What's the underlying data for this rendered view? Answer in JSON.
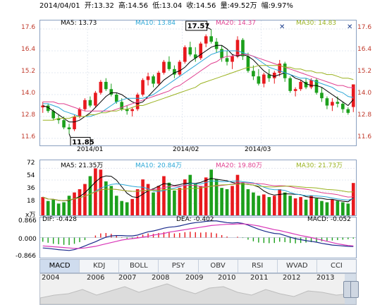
{
  "header": {
    "date": "2014/04/01",
    "open": "开:13.32",
    "high": "高:14.56",
    "low": "低:13.04",
    "close": "收:14.56",
    "volume": "量:49.52万",
    "change": "幅:9.97%"
  },
  "price_panel": {
    "ma_labels": [
      {
        "text": "MA5: 13.73",
        "color": "#000000"
      },
      {
        "text": "MA10: 13.84",
        "color": "#2aa6d6"
      },
      {
        "text": "MA20: 14.37",
        "color": "#e04090"
      },
      {
        "text": "MA30: 14.83",
        "color": "#9ab220"
      }
    ],
    "y_ticks": [
      "17.6",
      "16.4",
      "15.2",
      "14.0",
      "12.8",
      "11.6"
    ],
    "y_values": [
      17.6,
      16.4,
      15.2,
      14.0,
      12.8,
      11.6
    ],
    "date_ticks": [
      "2014/01",
      "2014/02",
      "2014/03"
    ],
    "high_marker": "17.57",
    "low_marker": "11.85",
    "up_color": "#e8191e",
    "down_color": "#1ca01c"
  },
  "volume_panel": {
    "ma_labels": [
      {
        "text": "MA5: 21.35万",
        "color": "#000000"
      },
      {
        "text": "MA10: 20.84万",
        "color": "#2aa6d6"
      },
      {
        "text": "MA20: 19.80万",
        "color": "#e04090"
      },
      {
        "text": "MA30: 21.73万",
        "color": "#9ab220"
      }
    ],
    "y_ticks": [
      "72",
      "54",
      "36",
      "18",
      "x万"
    ]
  },
  "macd_panel": {
    "dif": "DIF: -0.428",
    "dea": "DEA: -0.402",
    "macd": "MACD: -0.052",
    "y_ticks": [
      "0.866",
      "0.000",
      "-0.866"
    ]
  },
  "tabs": [
    "MACD",
    "KDJ",
    "BOLL",
    "PSY",
    "OBV",
    "RSI",
    "WVAD",
    "CCI"
  ],
  "active_tab": "MACD",
  "timeline": [
    "2004",
    "2006",
    "2007",
    "2008",
    "2009",
    "2010",
    "2011",
    "2012",
    "2013"
  ],
  "chart_data": {
    "type": "candlestick",
    "ohlc": [
      [
        13.3,
        13.6,
        13.0,
        13.4
      ],
      [
        13.4,
        13.5,
        13.0,
        13.1
      ],
      [
        13.1,
        13.2,
        12.6,
        12.7
      ],
      [
        12.7,
        12.9,
        12.4,
        12.6
      ],
      [
        12.6,
        12.8,
        12.1,
        12.2
      ],
      [
        12.2,
        12.4,
        11.85,
        12.1
      ],
      [
        12.1,
        12.9,
        12.0,
        12.8
      ],
      [
        12.8,
        13.3,
        12.7,
        13.2
      ],
      [
        13.2,
        13.8,
        13.1,
        13.7
      ],
      [
        13.7,
        13.9,
        13.3,
        13.4
      ],
      [
        13.4,
        14.2,
        13.3,
        14.1
      ],
      [
        14.1,
        14.8,
        14.0,
        14.7
      ],
      [
        14.7,
        14.9,
        14.2,
        14.3
      ],
      [
        14.3,
        14.6,
        13.9,
        14.0
      ],
      [
        14.0,
        14.1,
        13.5,
        13.6
      ],
      [
        13.6,
        13.8,
        13.1,
        13.2
      ],
      [
        13.2,
        13.4,
        12.9,
        13.1
      ],
      [
        13.1,
        13.3,
        12.8,
        13.2
      ],
      [
        13.2,
        14.1,
        13.1,
        14.0
      ],
      [
        14.0,
        14.9,
        13.9,
        14.8
      ],
      [
        14.8,
        15.2,
        14.5,
        15.0
      ],
      [
        15.0,
        15.1,
        14.4,
        14.6
      ],
      [
        14.6,
        15.3,
        14.5,
        15.2
      ],
      [
        15.2,
        15.9,
        15.1,
        15.8
      ],
      [
        15.8,
        16.1,
        15.3,
        15.4
      ],
      [
        15.4,
        15.6,
        14.9,
        15.1
      ],
      [
        15.1,
        15.9,
        15.0,
        15.8
      ],
      [
        15.8,
        16.7,
        15.7,
        16.6
      ],
      [
        16.6,
        16.9,
        16.1,
        16.2
      ],
      [
        16.2,
        16.6,
        15.8,
        16.0
      ],
      [
        16.0,
        16.9,
        15.9,
        16.8
      ],
      [
        16.8,
        17.3,
        16.6,
        17.2
      ],
      [
        17.2,
        17.57,
        16.8,
        16.9
      ],
      [
        16.9,
        17.1,
        16.3,
        16.5
      ],
      [
        16.5,
        16.7,
        15.8,
        16.0
      ],
      [
        16.0,
        16.4,
        15.6,
        15.8
      ],
      [
        15.8,
        16.2,
        15.4,
        16.1
      ],
      [
        16.1,
        17.2,
        16.0,
        17.0
      ],
      [
        17.0,
        17.1,
        15.9,
        16.1
      ],
      [
        16.1,
        16.3,
        15.2,
        15.3
      ],
      [
        15.3,
        15.6,
        14.8,
        15.0
      ],
      [
        15.0,
        15.4,
        14.5,
        14.6
      ],
      [
        14.6,
        15.2,
        14.4,
        15.1
      ],
      [
        15.1,
        15.4,
        14.7,
        14.9
      ],
      [
        14.9,
        15.3,
        14.6,
        15.2
      ],
      [
        15.2,
        15.9,
        15.0,
        15.7
      ],
      [
        15.7,
        15.8,
        14.7,
        14.9
      ],
      [
        14.9,
        15.0,
        14.1,
        14.2
      ],
      [
        14.2,
        14.4,
        13.9,
        14.3
      ],
      [
        14.3,
        14.8,
        14.2,
        14.7
      ],
      [
        14.7,
        14.9,
        14.3,
        14.4
      ],
      [
        14.4,
        14.9,
        14.3,
        14.8
      ],
      [
        14.8,
        14.9,
        14.0,
        14.1
      ],
      [
        14.1,
        14.4,
        13.6,
        13.8
      ],
      [
        13.8,
        13.9,
        13.2,
        13.4
      ],
      [
        13.4,
        13.8,
        13.1,
        13.6
      ],
      [
        13.6,
        13.9,
        13.3,
        13.5
      ],
      [
        13.5,
        13.6,
        13.0,
        13.2
      ],
      [
        13.2,
        13.3,
        12.9,
        13.0
      ],
      [
        13.32,
        14.56,
        13.04,
        14.56
      ]
    ],
    "ma5": [
      13.4,
      13.3,
      13.1,
      12.9,
      12.7,
      12.5,
      12.5,
      12.6,
      12.8,
      13.0,
      13.3,
      13.6,
      13.9,
      14.1,
      14.1,
      14.0,
      13.8,
      13.6,
      13.5,
      13.6,
      13.9,
      14.2,
      14.5,
      14.8,
      15.0,
      15.2,
      15.3,
      15.5,
      15.8,
      16.0,
      16.2,
      16.4,
      16.6,
      16.7,
      16.7,
      16.5,
      16.2,
      16.1,
      16.2,
      16.1,
      15.9,
      15.6,
      15.3,
      15.1,
      15.0,
      15.1,
      15.2,
      15.1,
      14.9,
      14.8,
      14.6,
      14.5,
      14.5,
      14.4,
      14.2,
      14.0,
      13.8,
      13.6,
      13.4,
      13.73
    ],
    "ma10": [
      13.5,
      13.5,
      13.4,
      13.3,
      13.1,
      13.0,
      12.9,
      12.8,
      12.8,
      12.8,
      12.9,
      13.0,
      13.2,
      13.4,
      13.6,
      13.7,
      13.8,
      13.8,
      13.8,
      13.8,
      13.9,
      14.0,
      14.2,
      14.4,
      14.6,
      14.8,
      15.0,
      15.2,
      15.4,
      15.6,
      15.8,
      16.0,
      16.2,
      16.3,
      16.4,
      16.4,
      16.4,
      16.4,
      16.3,
      16.2,
      16.1,
      15.9,
      15.7,
      15.5,
      15.4,
      15.3,
      15.2,
      15.1,
      15.0,
      14.9,
      14.9,
      14.8,
      14.7,
      14.6,
      14.5,
      14.4,
      14.2,
      14.1,
      13.9,
      13.84
    ],
    "ma20": [
      13.6,
      13.6,
      13.6,
      13.5,
      13.5,
      13.4,
      13.3,
      13.2,
      13.1,
      13.1,
      13.1,
      13.1,
      13.1,
      13.1,
      13.2,
      13.3,
      13.4,
      13.5,
      13.6,
      13.7,
      13.8,
      13.9,
      14.0,
      14.1,
      14.2,
      14.4,
      14.5,
      14.7,
      14.9,
      15.1,
      15.3,
      15.5,
      15.7,
      15.8,
      16.0,
      16.1,
      16.1,
      16.2,
      16.2,
      16.2,
      16.1,
      16.0,
      15.9,
      15.8,
      15.7,
      15.6,
      15.5,
      15.4,
      15.3,
      15.2,
      15.1,
      15.0,
      14.9,
      14.8,
      14.7,
      14.6,
      14.5,
      14.5,
      14.4,
      14.37
    ],
    "ma30": [
      12.6,
      12.6,
      12.6,
      12.7,
      12.7,
      12.7,
      12.8,
      12.8,
      12.8,
      12.9,
      12.9,
      13.0,
      13.0,
      13.1,
      13.1,
      13.2,
      13.2,
      13.3,
      13.4,
      13.4,
      13.5,
      13.6,
      13.7,
      13.8,
      13.9,
      14.0,
      14.1,
      14.2,
      14.3,
      14.4,
      14.6,
      14.7,
      14.8,
      14.9,
      15.0,
      15.1,
      15.2,
      15.3,
      15.4,
      15.5,
      15.5,
      15.6,
      15.6,
      15.6,
      15.6,
      15.6,
      15.5,
      15.5,
      15.4,
      15.4,
      15.3,
      15.3,
      15.2,
      15.2,
      15.1,
      15.1,
      15.0,
      14.9,
      14.9,
      14.83
    ],
    "volume": [
      28,
      22,
      24,
      18,
      20,
      30,
      35,
      40,
      48,
      60,
      72,
      70,
      52,
      45,
      30,
      22,
      20,
      25,
      40,
      55,
      48,
      35,
      45,
      60,
      50,
      38,
      42,
      55,
      62,
      48,
      45,
      58,
      70,
      55,
      42,
      40,
      45,
      62,
      50,
      40,
      35,
      30,
      32,
      28,
      30,
      40,
      35,
      30,
      26,
      28,
      24,
      30,
      26,
      22,
      20,
      24,
      22,
      20,
      18,
      49.52
    ],
    "macd_bar": [
      -0.2,
      -0.25,
      -0.3,
      -0.32,
      -0.35,
      -0.36,
      -0.3,
      -0.22,
      -0.12,
      0.0,
      0.1,
      0.2,
      0.22,
      0.18,
      0.1,
      0.02,
      -0.05,
      -0.04,
      0.05,
      0.14,
      0.2,
      0.18,
      0.22,
      0.26,
      0.24,
      0.2,
      0.22,
      0.26,
      0.28,
      0.26,
      0.24,
      0.26,
      0.24,
      0.2,
      0.12,
      0.05,
      0.0,
      0.04,
      -0.02,
      -0.1,
      -0.18,
      -0.24,
      -0.26,
      -0.27,
      -0.26,
      -0.2,
      -0.22,
      -0.26,
      -0.28,
      -0.26,
      -0.24,
      -0.22,
      -0.2,
      -0.18,
      -0.16,
      -0.14,
      -0.12,
      -0.1,
      -0.08,
      -0.052
    ],
    "dif": [
      -0.5,
      -0.52,
      -0.55,
      -0.58,
      -0.6,
      -0.62,
      -0.58,
      -0.5,
      -0.4,
      -0.3,
      -0.2,
      -0.08,
      0.02,
      0.08,
      0.1,
      0.1,
      0.08,
      0.08,
      0.12,
      0.2,
      0.28,
      0.32,
      0.38,
      0.45,
      0.5,
      0.52,
      0.56,
      0.62,
      0.68,
      0.72,
      0.74,
      0.78,
      0.8,
      0.8,
      0.76,
      0.72,
      0.7,
      0.72,
      0.68,
      0.6,
      0.5,
      0.4,
      0.32,
      0.25,
      0.2,
      0.18,
      0.1,
      0.02,
      -0.05,
      -0.1,
      -0.15,
      -0.18,
      -0.22,
      -0.28,
      -0.32,
      -0.36,
      -0.38,
      -0.4,
      -0.42,
      -0.428
    ],
    "dea": [
      -0.4,
      -0.42,
      -0.44,
      -0.46,
      -0.48,
      -0.5,
      -0.52,
      -0.52,
      -0.5,
      -0.46,
      -0.42,
      -0.36,
      -0.3,
      -0.24,
      -0.18,
      -0.12,
      -0.08,
      -0.05,
      -0.02,
      0.02,
      0.06,
      0.12,
      0.16,
      0.2,
      0.26,
      0.3,
      0.34,
      0.38,
      0.42,
      0.46,
      0.5,
      0.54,
      0.58,
      0.6,
      0.62,
      0.64,
      0.64,
      0.66,
      0.66,
      0.64,
      0.6,
      0.56,
      0.5,
      0.44,
      0.38,
      0.34,
      0.28,
      0.22,
      0.16,
      0.1,
      0.05,
      0.0,
      -0.06,
      -0.12,
      -0.18,
      -0.24,
      -0.3,
      -0.34,
      -0.38,
      -0.402
    ]
  }
}
